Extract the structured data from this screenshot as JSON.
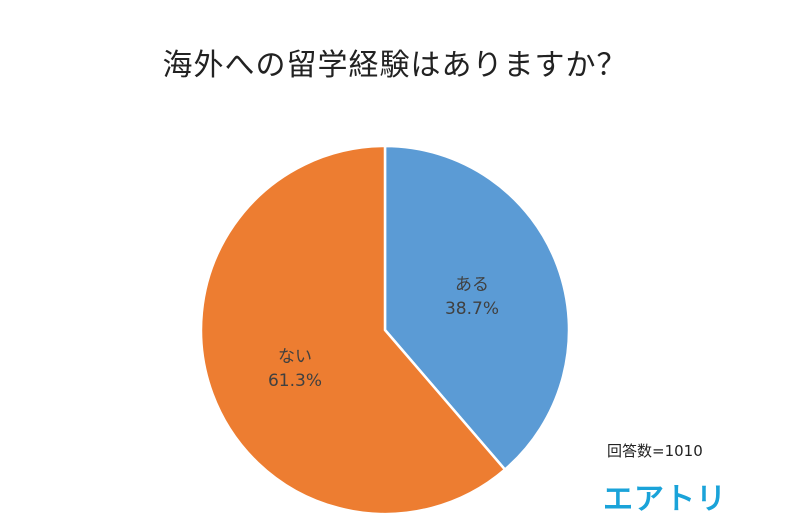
{
  "chart_data": {
    "type": "pie",
    "title": "海外への留学経験はありますか？",
    "slices": [
      {
        "label": "ある",
        "value": 38.7,
        "value_label": "38.7%",
        "color": "#5b9bd5"
      },
      {
        "label": "ない",
        "value": 61.3,
        "value_label": "61.3%",
        "color": "#ed7d31"
      }
    ],
    "start": "12 o'clock, clockwise",
    "legend": "none"
  },
  "footnote": {
    "sample_size": "回答数=1010"
  },
  "brand": {
    "logo_text": "エアトリ",
    "color": "#1aa3d9"
  }
}
